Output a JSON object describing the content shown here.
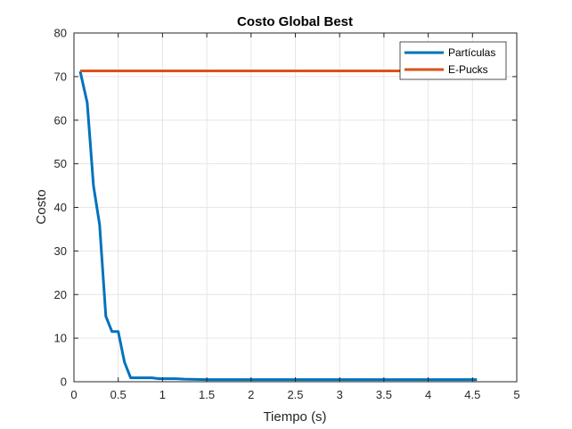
{
  "chart_data": {
    "type": "line",
    "title": "Costo Global Best",
    "xlabel": "Tiempo (s)",
    "ylabel": "Costo",
    "xlim": [
      0,
      5
    ],
    "ylim": [
      0,
      80
    ],
    "xticks": [
      "0",
      "0.5",
      "1",
      "1.5",
      "2",
      "2.5",
      "3",
      "3.5",
      "4",
      "4.5",
      "5"
    ],
    "yticks": [
      "0",
      "10",
      "20",
      "30",
      "40",
      "50",
      "60",
      "70",
      "80"
    ],
    "grid": true,
    "legend_position": "top-right",
    "series": [
      {
        "name": "Partículas",
        "color": "#0072BD",
        "x": [
          0.07,
          0.15,
          0.22,
          0.29,
          0.36,
          0.43,
          0.5,
          0.57,
          0.64,
          0.72,
          0.8,
          0.88,
          0.96,
          1.05,
          1.15,
          1.25,
          1.5,
          2.0,
          2.5,
          3.0,
          3.5,
          4.0,
          4.55
        ],
        "y": [
          71.2,
          64.0,
          45.0,
          36.0,
          15.0,
          11.5,
          11.5,
          4.5,
          0.9,
          0.9,
          0.9,
          0.9,
          0.7,
          0.7,
          0.7,
          0.6,
          0.5,
          0.5,
          0.5,
          0.5,
          0.5,
          0.5,
          0.5
        ]
      },
      {
        "name": "E-Pucks",
        "color": "#D95319",
        "x": [
          0.07,
          4.55
        ],
        "y": [
          71.3,
          71.3
        ]
      }
    ]
  }
}
